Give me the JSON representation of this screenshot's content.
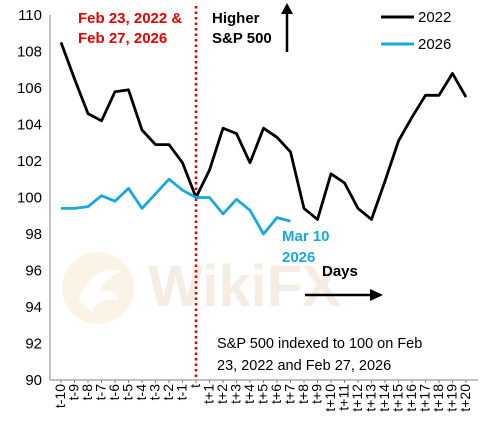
{
  "chart_data": {
    "type": "line",
    "categories": [
      "t-10",
      "t-9",
      "t-8",
      "t-7",
      "t-6",
      "t-5",
      "t-4",
      "t-3",
      "t-2",
      "t-1",
      "t",
      "t+1",
      "t+2",
      "t+3",
      "t+4",
      "t+5",
      "t+6",
      "t+7",
      "t+8",
      "t+9",
      "t+10",
      "t+11",
      "t+12",
      "t+13",
      "t+14",
      "t+15",
      "t+16",
      "t+17",
      "t+18",
      "t+19",
      "t+20"
    ],
    "series": [
      {
        "name": "2022",
        "color": "#000000",
        "values": [
          108.5,
          106.5,
          104.6,
          104.2,
          105.8,
          105.9,
          103.7,
          102.9,
          102.9,
          101.9,
          100.0,
          101.5,
          103.8,
          103.5,
          101.9,
          103.8,
          103.3,
          102.5,
          99.4,
          98.8,
          101.3,
          100.8,
          99.4,
          98.8,
          100.9,
          103.1,
          104.4,
          105.6,
          105.6,
          106.8,
          105.5
        ]
      },
      {
        "name": "2026",
        "color": "#1aa7dc",
        "values": [
          99.4,
          99.4,
          99.5,
          100.1,
          99.8,
          100.5,
          99.4,
          100.2,
          101.0,
          100.4,
          100.0,
          100.0,
          99.1,
          99.9,
          99.3,
          98.0,
          98.9,
          98.7,
          null,
          null,
          null,
          null,
          null,
          null,
          null,
          null,
          null,
          null,
          null,
          null,
          null
        ]
      }
    ],
    "ylim": [
      90,
      110
    ],
    "yticks": [
      90,
      92,
      94,
      96,
      98,
      100,
      102,
      104,
      106,
      108,
      110
    ],
    "grid": false,
    "legend": "top-right",
    "reference_line": {
      "at": "t",
      "color": "#e00000",
      "style": "dotted"
    },
    "annotations": {
      "dates": [
        "Feb 23, 2022 &",
        "Feb 27, 2026"
      ],
      "higher": [
        "Higher",
        "S&P 500"
      ],
      "mar": [
        "Mar 10",
        "2026"
      ],
      "days": "Days",
      "note": [
        "S&P 500 indexed to 100 on Feb",
        "23, 2022 and Feb 27, 2026"
      ]
    },
    "annotation_colors": {
      "dates": "#e00000",
      "higher": "#000000",
      "mar": "#1aa7dc",
      "days": "#000000"
    },
    "watermark": "WikiFX"
  }
}
